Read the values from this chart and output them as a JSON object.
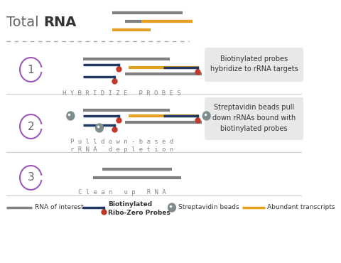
{
  "bg_color": "#ffffff",
  "title_text": "Total",
  "title_bold": "RNA",
  "gray_color": "#808080",
  "dark_blue": "#1f3864",
  "orange_color": "#e6a020",
  "red_color": "#c0392b",
  "purple_color": "#9b59b6",
  "bead_color": "#7f8c8d",
  "label_box_color": "#e8e8e8",
  "dashed_line_color": "#aaaaaa",
  "step_label_0": "H Y B R I D I Z E   P R O B E S",
  "step_label_1a": "P u l l d o w n - b a s e d",
  "step_label_1b": "r R N A   d e p l e t i o n",
  "step_label_2": "C l e a n   u p   R N A",
  "step_numbers": [
    "1",
    "2",
    "3"
  ],
  "box1_text": "Biotinylated probes\nhybridize to rRNA targets",
  "box2_text": "Streptavidin beads pull\ndown rRNAs bound with\nbiotinylated probes",
  "legend_rna": "RNA of interest",
  "legend_probe1": "Biotinylated",
  "legend_probe2": "Ribo-Zero Probes",
  "legend_beads": "Streptavidin beads",
  "legend_abundant": "Abundant transcripts"
}
